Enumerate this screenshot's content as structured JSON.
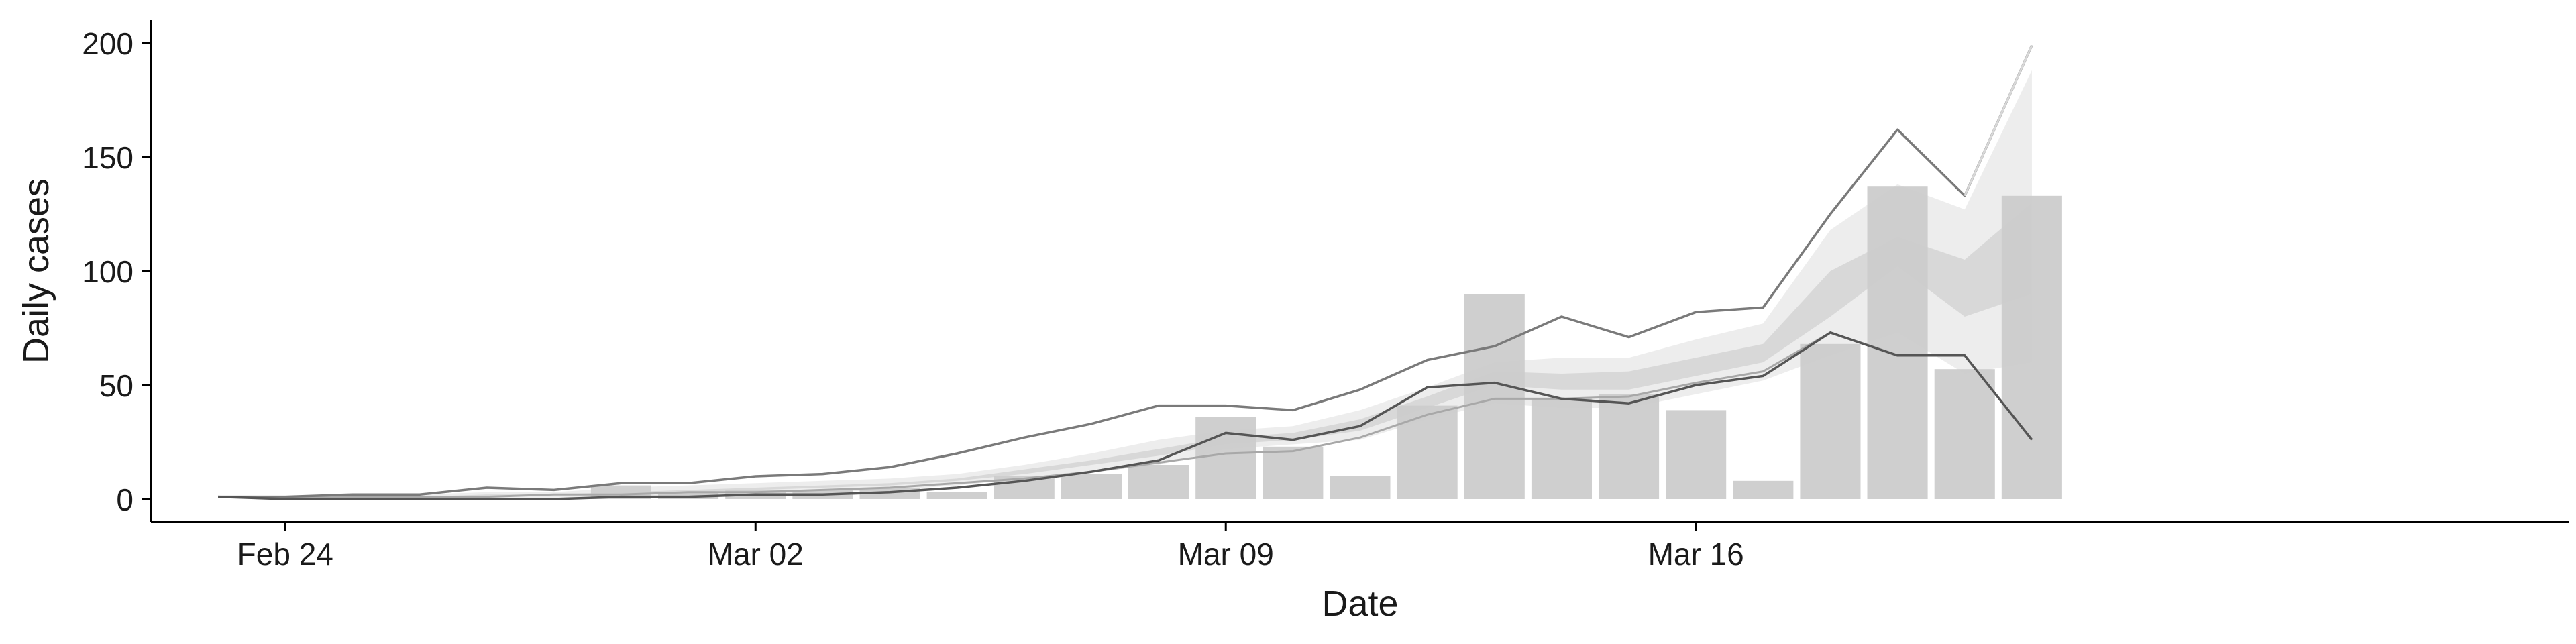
{
  "chart_data": {
    "type": "bar",
    "xlabel": "Date",
    "ylabel": "Daily cases",
    "ylim": [
      -10,
      210
    ],
    "yticks": [
      0,
      50,
      100,
      150,
      200
    ],
    "xticks": [
      {
        "date": "2020-02-24",
        "label": "Feb 24"
      },
      {
        "date": "2020-03-02",
        "label": "Mar 02"
      },
      {
        "date": "2020-03-09",
        "label": "Mar 09"
      },
      {
        "date": "2020-03-16",
        "label": "Mar 16"
      }
    ],
    "xlim": [
      "2020-02-22",
      "2020-03-29"
    ],
    "grid": false,
    "legend": "none",
    "colors": {
      "bars": "#cccccc",
      "band_outer": "#ebebeb",
      "band_inner": "#d3d3d3",
      "line_dark": "#555555",
      "line_mid": "#7a7a7a",
      "line_light": "#a8a8a8",
      "line_faint": "#d9d9d9",
      "axis": "#000000"
    },
    "bars": [
      {
        "date": "2020-02-29",
        "value": 6
      },
      {
        "date": "2020-03-01",
        "value": 3
      },
      {
        "date": "2020-03-02",
        "value": 4
      },
      {
        "date": "2020-03-03",
        "value": 4
      },
      {
        "date": "2020-03-04",
        "value": 5
      },
      {
        "date": "2020-03-05",
        "value": 3
      },
      {
        "date": "2020-03-06",
        "value": 10
      },
      {
        "date": "2020-03-07",
        "value": 11
      },
      {
        "date": "2020-03-08",
        "value": 15
      },
      {
        "date": "2020-03-09",
        "value": 36
      },
      {
        "date": "2020-03-10",
        "value": 23
      },
      {
        "date": "2020-03-11",
        "value": 10
      },
      {
        "date": "2020-03-12",
        "value": 41
      },
      {
        "date": "2020-03-13",
        "value": 90
      },
      {
        "date": "2020-03-14",
        "value": 44
      },
      {
        "date": "2020-03-15",
        "value": 46
      },
      {
        "date": "2020-03-16",
        "value": 39
      },
      {
        "date": "2020-03-17",
        "value": 8
      },
      {
        "date": "2020-03-18",
        "value": 68
      },
      {
        "date": "2020-03-19",
        "value": 137
      },
      {
        "date": "2020-03-20",
        "value": 57
      },
      {
        "date": "2020-03-21",
        "value": 133
      }
    ],
    "bands": [
      {
        "name": "outer",
        "dates": [
          "2020-02-23",
          "2020-02-24",
          "2020-02-25",
          "2020-02-26",
          "2020-02-27",
          "2020-02-28",
          "2020-02-29",
          "2020-03-01",
          "2020-03-02",
          "2020-03-03",
          "2020-03-04",
          "2020-03-05",
          "2020-03-06",
          "2020-03-07",
          "2020-03-08",
          "2020-03-09",
          "2020-03-10",
          "2020-03-11",
          "2020-03-12",
          "2020-03-13",
          "2020-03-14",
          "2020-03-15",
          "2020-03-16",
          "2020-03-17",
          "2020-03-18",
          "2020-03-19",
          "2020-03-20",
          "2020-03-21"
        ],
        "low": [
          1,
          0,
          0,
          0,
          0,
          0,
          1,
          1,
          2,
          3,
          4,
          6,
          9,
          12,
          15,
          22,
          24,
          26,
          35,
          42,
          40,
          40,
          46,
          52,
          63,
          73,
          55,
          60
        ],
        "high": [
          1,
          1,
          1,
          2,
          3,
          3,
          5,
          6,
          7,
          8,
          9,
          11,
          15,
          20,
          26,
          30,
          32,
          39,
          49,
          60,
          62,
          62,
          70,
          77,
          118,
          138,
          127,
          188
        ]
      },
      {
        "name": "inner",
        "dates": [
          "2020-02-23",
          "2020-02-24",
          "2020-02-25",
          "2020-02-26",
          "2020-02-27",
          "2020-02-28",
          "2020-02-29",
          "2020-03-01",
          "2020-03-02",
          "2020-03-03",
          "2020-03-04",
          "2020-03-05",
          "2020-03-06",
          "2020-03-07",
          "2020-03-08",
          "2020-03-09",
          "2020-03-10",
          "2020-03-11",
          "2020-03-12",
          "2020-03-13",
          "2020-03-14",
          "2020-03-15",
          "2020-03-16",
          "2020-03-17",
          "2020-03-18",
          "2020-03-19",
          "2020-03-20",
          "2020-03-21"
        ],
        "low": [
          1,
          0,
          1,
          1,
          1,
          2,
          2,
          3,
          4,
          5,
          6,
          8,
          11,
          15,
          19,
          24,
          26,
          30,
          40,
          50,
          48,
          48,
          54,
          60,
          80,
          102,
          80,
          90
        ],
        "high": [
          1,
          1,
          1,
          1,
          2,
          2,
          3,
          4,
          5,
          6,
          7,
          9,
          13,
          17,
          22,
          27,
          29,
          35,
          45,
          56,
          55,
          56,
          62,
          68,
          100,
          115,
          105,
          130
        ]
      }
    ],
    "lines": [
      {
        "style": "light",
        "dates": [
          "2020-02-23",
          "2020-02-24",
          "2020-02-25",
          "2020-02-26",
          "2020-02-27",
          "2020-02-28",
          "2020-02-29",
          "2020-03-01",
          "2020-03-02",
          "2020-03-03",
          "2020-03-04",
          "2020-03-05",
          "2020-03-06",
          "2020-03-07",
          "2020-03-08",
          "2020-03-09",
          "2020-03-10",
          "2020-03-11",
          "2020-03-12",
          "2020-03-13",
          "2020-03-14",
          "2020-03-15",
          "2020-03-16",
          "2020-03-17",
          "2020-03-18",
          "2020-03-19",
          "2020-03-20",
          "2020-03-21"
        ],
        "values": [
          1,
          1,
          1,
          1,
          1,
          2,
          2,
          3,
          3,
          4,
          5,
          7,
          9,
          12,
          16,
          20,
          21,
          27,
          37,
          44,
          44,
          45,
          51,
          56,
          73,
          63,
          63,
          26
        ]
      },
      {
        "style": "mid",
        "dates": [
          "2020-02-23",
          "2020-02-24",
          "2020-02-25",
          "2020-02-26",
          "2020-02-27",
          "2020-02-28",
          "2020-02-29",
          "2020-03-01",
          "2020-03-02",
          "2020-03-03",
          "2020-03-04",
          "2020-03-05",
          "2020-03-06",
          "2020-03-07",
          "2020-03-08",
          "2020-03-09",
          "2020-03-10",
          "2020-03-11",
          "2020-03-12",
          "2020-03-13",
          "2020-03-14",
          "2020-03-15",
          "2020-03-16",
          "2020-03-17",
          "2020-03-18",
          "2020-03-19",
          "2020-03-20",
          "2020-03-21"
        ],
        "values": [
          1,
          1,
          2,
          2,
          5,
          4,
          7,
          7,
          10,
          11,
          14,
          20,
          27,
          33,
          41,
          41,
          39,
          48,
          61,
          67,
          80,
          71,
          82,
          84,
          125,
          162,
          133,
          199
        ]
      },
      {
        "style": "dark",
        "dates": [
          "2020-02-23",
          "2020-02-24",
          "2020-02-25",
          "2020-02-26",
          "2020-02-27",
          "2020-02-28",
          "2020-02-29",
          "2020-03-01",
          "2020-03-02",
          "2020-03-03",
          "2020-03-04",
          "2020-03-05",
          "2020-03-06",
          "2020-03-07",
          "2020-03-08",
          "2020-03-09",
          "2020-03-10",
          "2020-03-11",
          "2020-03-12",
          "2020-03-13",
          "2020-03-14",
          "2020-03-15",
          "2020-03-16",
          "2020-03-17",
          "2020-03-18",
          "2020-03-19",
          "2020-03-20",
          "2020-03-21"
        ],
        "values": [
          1,
          0,
          0,
          0,
          0,
          0,
          1,
          1,
          2,
          2,
          3,
          5,
          8,
          12,
          17,
          29,
          26,
          32,
          49,
          51,
          44,
          42,
          50,
          54,
          73,
          63,
          63,
          26
        ]
      },
      {
        "style": "faint",
        "dates": [
          "2020-03-20",
          "2020-03-21"
        ],
        "values": [
          133,
          199
        ]
      }
    ]
  }
}
